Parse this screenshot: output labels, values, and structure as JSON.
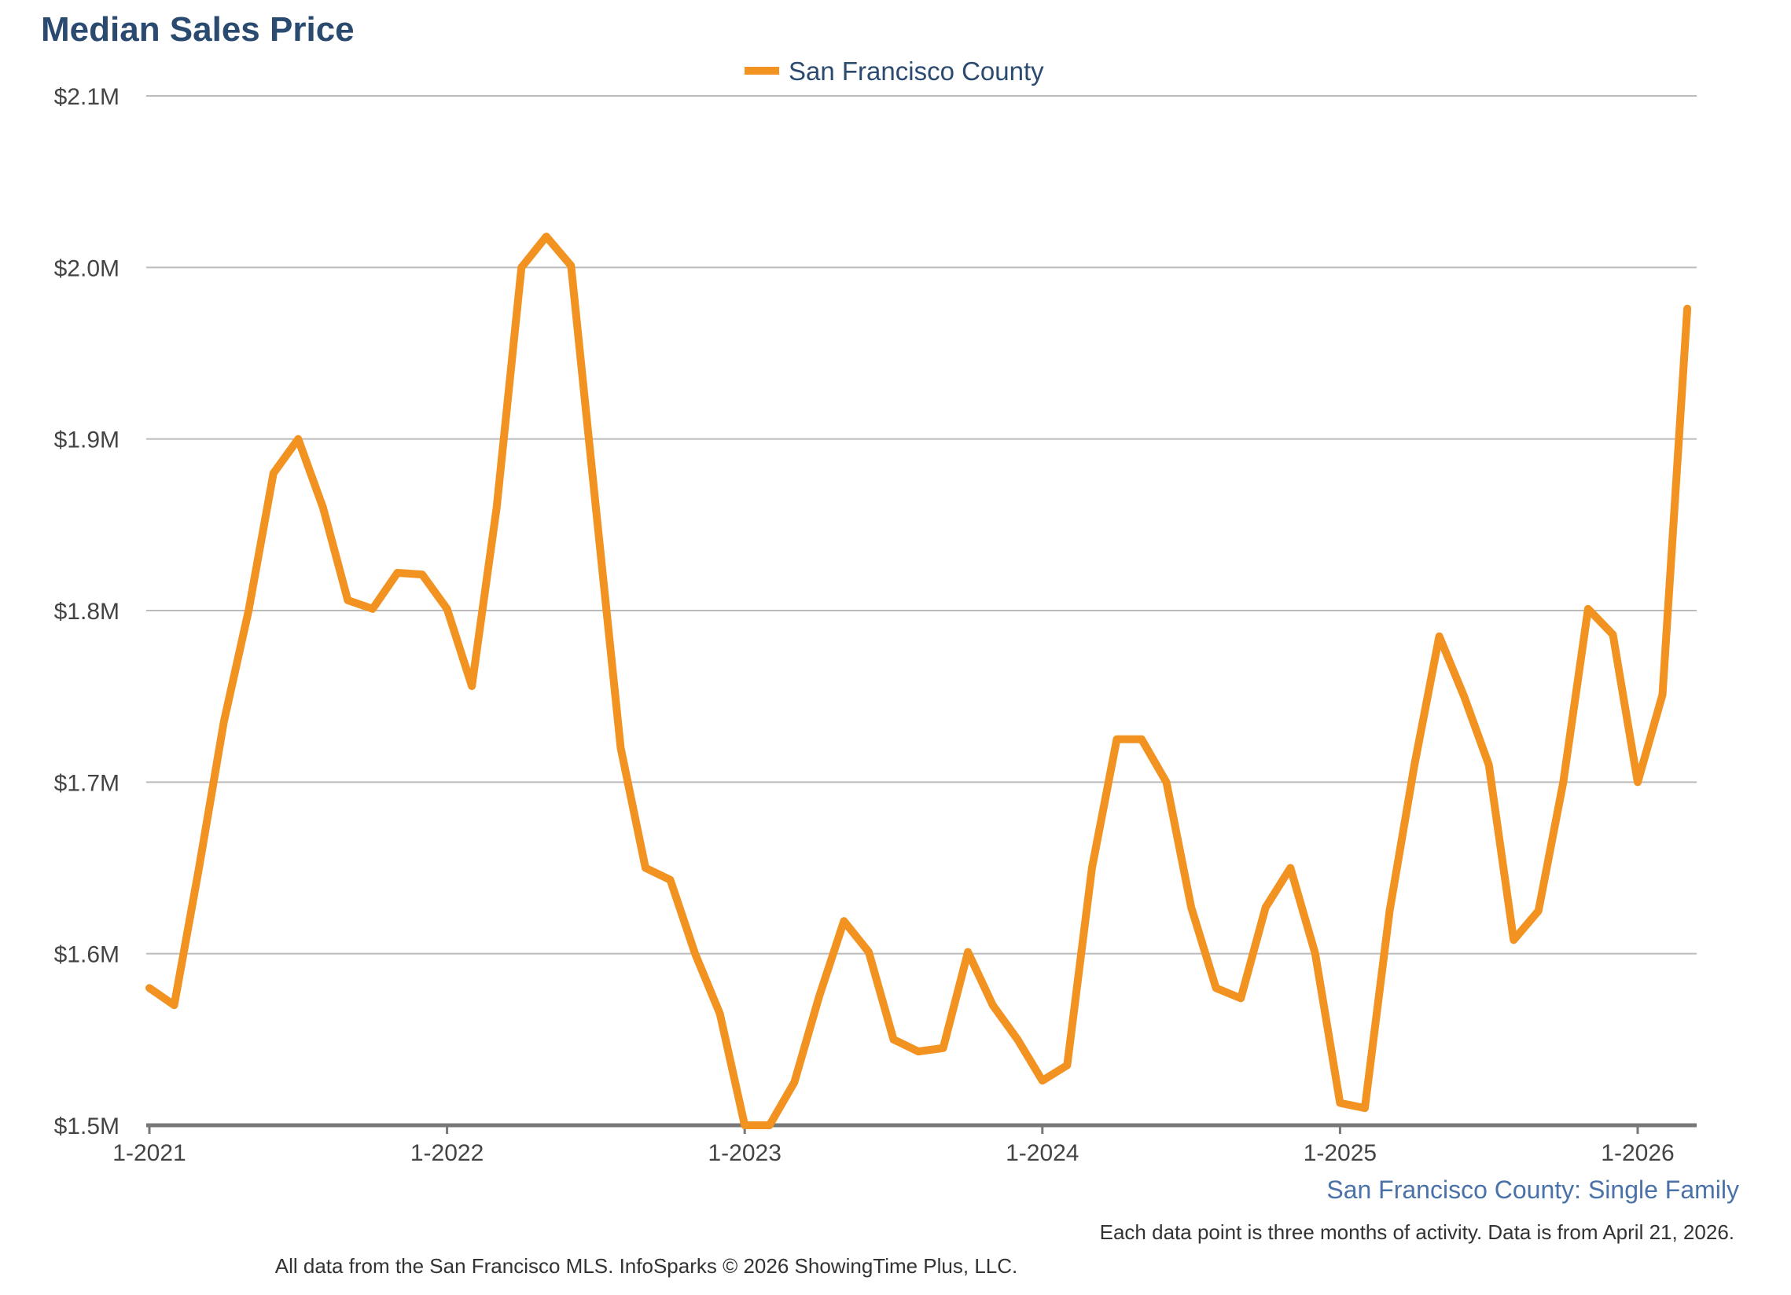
{
  "colors": {
    "title": "#2b4a6f",
    "series": "#f29221",
    "legend_text": "#2b4a6f",
    "subtitle": "#4a72a8",
    "grid": "#bbbbbb",
    "axis": "#777777"
  },
  "chart_data": {
    "type": "line",
    "title": "Median Sales Price",
    "legend": [
      "San Francisco County"
    ],
    "legend_position": "top-center",
    "subtitle": "San Francisco County: Single Family",
    "note": "Each data point is three months of activity. Data is from April 21, 2026.",
    "footer": "All data from the San Francisco MLS. InfoSparks © 2026 ShowingTime Plus, LLC.",
    "xlabel": "",
    "ylabel": "",
    "x_range_months": [
      0,
      62
    ],
    "ylim": [
      1500000,
      2100000
    ],
    "y_ticks": [
      {
        "value": 1500000,
        "label": "$1.5M"
      },
      {
        "value": 1600000,
        "label": "$1.6M"
      },
      {
        "value": 1700000,
        "label": "$1.7M"
      },
      {
        "value": 1800000,
        "label": "$1.8M"
      },
      {
        "value": 1900000,
        "label": "$1.9M"
      },
      {
        "value": 2000000,
        "label": "$2.0M"
      },
      {
        "value": 2100000,
        "label": "$2.1M"
      }
    ],
    "x_ticks": [
      {
        "value": 0,
        "label": "1-2021"
      },
      {
        "value": 12,
        "label": "1-2022"
      },
      {
        "value": 24,
        "label": "1-2023"
      },
      {
        "value": 36,
        "label": "1-2024"
      },
      {
        "value": 48,
        "label": "1-2025"
      },
      {
        "value": 60,
        "label": "1-2026"
      }
    ],
    "grid": true,
    "series": [
      {
        "name": "San Francisco County",
        "x_months_since_jan_2021": [
          0,
          1,
          2,
          3,
          4,
          5,
          6,
          7,
          8,
          9,
          10,
          11,
          12,
          13,
          14,
          15,
          16,
          17,
          18,
          19,
          20,
          21,
          22,
          23,
          24,
          25,
          26,
          27,
          28,
          29,
          30,
          31,
          32,
          33,
          34,
          35,
          36,
          37,
          38,
          39,
          40,
          41,
          42,
          43,
          44,
          45,
          46,
          47,
          48,
          49,
          50,
          51,
          52,
          53,
          54,
          55,
          56,
          57,
          58,
          59,
          60,
          61,
          62
        ],
        "values": [
          1580000,
          1570000,
          1650000,
          1735000,
          1800000,
          1880000,
          1900000,
          1860000,
          1806000,
          1801000,
          1822000,
          1821000,
          1801000,
          1756000,
          1860000,
          2000000,
          2018000,
          2001000,
          1860000,
          1720000,
          1650000,
          1643000,
          1600000,
          1565000,
          1500000,
          1500000,
          1525000,
          1575000,
          1619000,
          1601000,
          1550000,
          1543000,
          1545000,
          1601000,
          1570000,
          1550000,
          1526000,
          1535000,
          1650000,
          1725000,
          1725000,
          1700000,
          1627000,
          1580000,
          1574000,
          1627000,
          1650000,
          1600000,
          1513000,
          1510000,
          1625000,
          1710000,
          1785000,
          1750000,
          1710000,
          1608000,
          1625000,
          1700000,
          1801000,
          1786000,
          1700000,
          1751000,
          1976000
        ]
      }
    ]
  }
}
